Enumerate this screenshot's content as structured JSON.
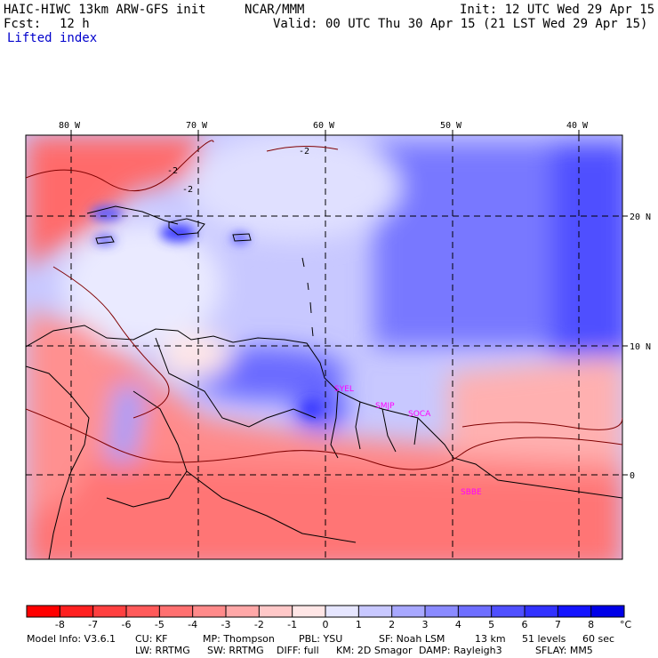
{
  "header": {
    "model_title": "HAIC-HIWC 13km ARW-GFS init",
    "org": "NCAR/MMM",
    "init": "Init: 12 UTC Wed 29 Apr 15",
    "fcst_label": "Fcst:",
    "fcst_value": "12 h",
    "valid": "Valid: 00 UTC Thu 30 Apr 15 (21 LST Wed 29 Apr 15)",
    "field": "Lifted index"
  },
  "map": {
    "lon_labels": [
      "80 W",
      "70 W",
      "60 W",
      "50 W",
      "40 W"
    ],
    "lat_labels": [
      "20 N",
      "10 N",
      "0"
    ],
    "contour_label": "-2",
    "sites": [
      "SYEL",
      "SMJP",
      "SOCA",
      "SBBE"
    ],
    "colors": {
      "warm": "#ff3b3b",
      "cool": "#3b3bff",
      "neutral": "#ffffff"
    }
  },
  "colorbar": {
    "ticks": [
      "-8",
      "-7",
      "-6",
      "-5",
      "-4",
      "-3",
      "-2",
      "-1",
      "0",
      "1",
      "2",
      "3",
      "4",
      "5",
      "6",
      "7",
      "8"
    ],
    "unit": "°C",
    "colors": [
      "#ff0000",
      "#ff2020",
      "#ff4040",
      "#ff5a5a",
      "#ff7070",
      "#ff8a8a",
      "#ffa8a8",
      "#ffc8c8",
      "#ffe6e6",
      "#e6e6ff",
      "#c8c8ff",
      "#a8a8ff",
      "#8a8aff",
      "#6e6eff",
      "#5050ff",
      "#3232ff",
      "#1414ff",
      "#0000e8"
    ]
  },
  "footer": {
    "line1": [
      "Model Info: V3.6.1",
      "CU: KF",
      "MP: Thompson",
      "PBL: YSU",
      "SF: Noah LSM",
      "13 km",
      "51 levels",
      "60 sec"
    ],
    "line2": [
      "LW: RRTMG",
      "SW: RRTMG",
      "DIFF: full",
      "KM: 2D Smagor",
      "DAMP: Rayleigh3",
      "SFLAY: MM5"
    ]
  }
}
